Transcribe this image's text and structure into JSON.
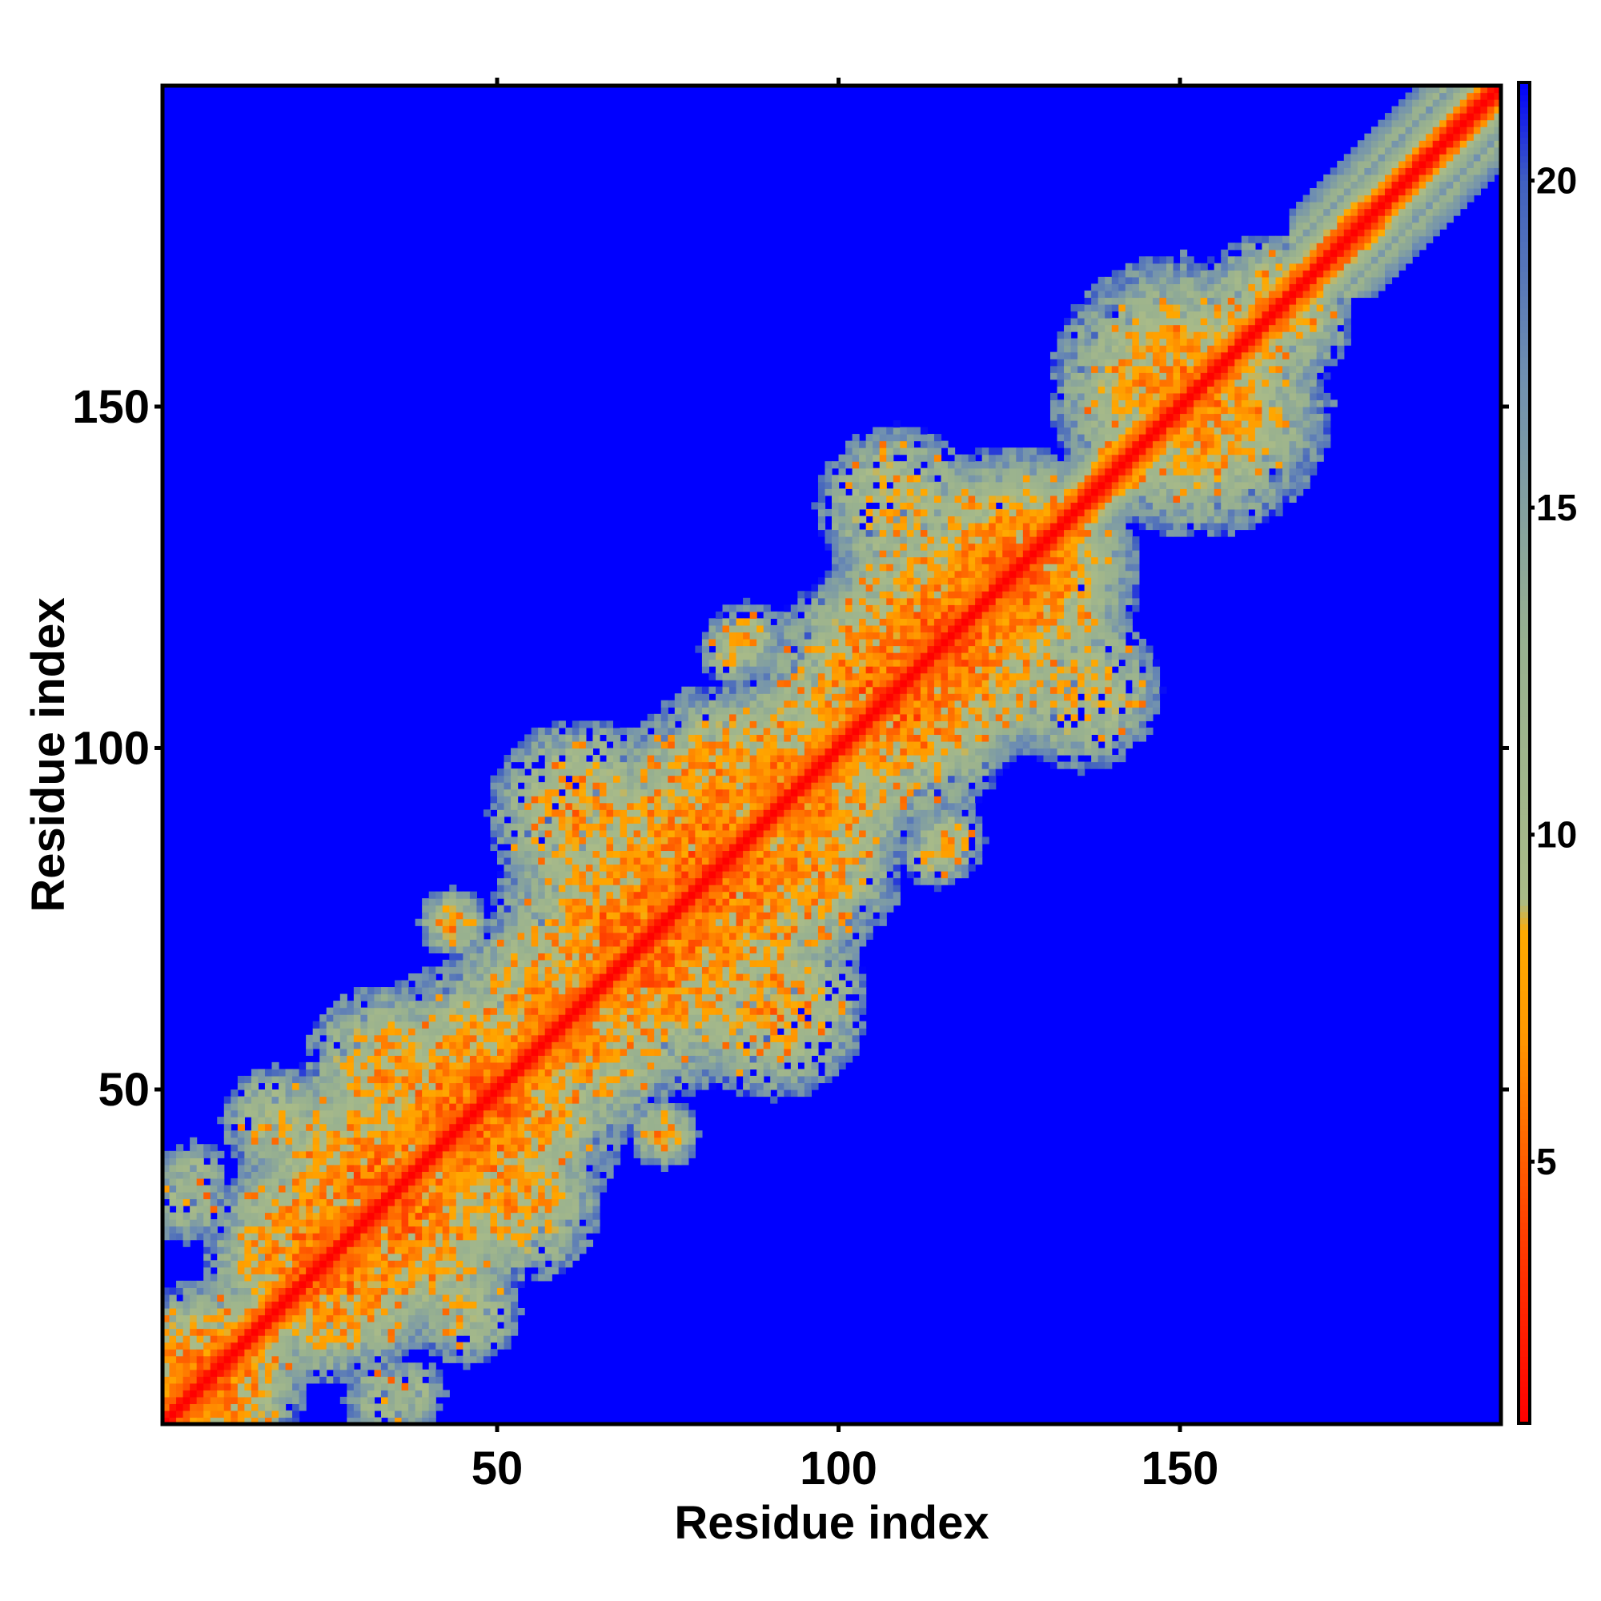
{
  "chart_data": {
    "type": "heatmap",
    "title": "",
    "xlabel": "Residue index",
    "ylabel": "Residue index",
    "xlim": [
      1,
      196
    ],
    "ylim": [
      1,
      196
    ],
    "x_ticks": [
      "50",
      "100",
      "150"
    ],
    "y_ticks": [
      "50",
      "100",
      "150"
    ],
    "colorbar": {
      "range": [
        1,
        21.5
      ],
      "ticks": [
        "5",
        "10",
        "15",
        "20"
      ],
      "stops": [
        {
          "value": 1,
          "color": "#ff0000"
        },
        {
          "value": 4,
          "color": "#ff4000"
        },
        {
          "value": 7,
          "color": "#ff9900"
        },
        {
          "value": 8.5,
          "color": "#ffaa00"
        },
        {
          "value": 9,
          "color": "#a9bb88"
        },
        {
          "value": 13,
          "color": "#97b090"
        },
        {
          "value": 17,
          "color": "#7090b0"
        },
        {
          "value": 20,
          "color": "#4060c0"
        },
        {
          "value": 21.5,
          "color": "#0000ff"
        }
      ]
    },
    "background_value": 21.5,
    "description_values": {
      "diagonal_band": [
        {
          "offset": 0,
          "value": 1
        },
        {
          "offset": 1,
          "value": 2
        },
        {
          "offset": 2,
          "value": 5
        },
        {
          "offset": 3,
          "value": 6
        },
        {
          "offset": 4,
          "value": 9
        },
        {
          "offset": 5,
          "value": 11
        },
        {
          "offset": 6,
          "value": 13
        },
        {
          "offset": 7,
          "value": 15
        }
      ],
      "contact_blobs": [
        {
          "x": 8,
          "y": 8,
          "r": 14,
          "core": 6
        },
        {
          "x": 25,
          "y": 22,
          "r": 16,
          "core": 6
        },
        {
          "x": 33,
          "y": 34,
          "r": 22,
          "core": 6
        },
        {
          "x": 45,
          "y": 48,
          "r": 20,
          "core": 6
        },
        {
          "x": 58,
          "y": 60,
          "r": 18,
          "core": 7
        },
        {
          "x": 70,
          "y": 72,
          "r": 22,
          "core": 6
        },
        {
          "x": 80,
          "y": 83,
          "r": 20,
          "core": 6
        },
        {
          "x": 92,
          "y": 94,
          "r": 18,
          "core": 7
        },
        {
          "x": 105,
          "y": 108,
          "r": 18,
          "core": 6
        },
        {
          "x": 115,
          "y": 115,
          "r": 20,
          "core": 6
        },
        {
          "x": 125,
          "y": 126,
          "r": 18,
          "core": 6
        },
        {
          "x": 150,
          "y": 152,
          "r": 20,
          "core": 7
        },
        {
          "x": 165,
          "y": 163,
          "r": 10,
          "core": 8
        },
        {
          "x": 84,
          "y": 114,
          "r": 5,
          "core": 9
        },
        {
          "x": 43,
          "y": 74,
          "r": 5,
          "core": 9
        },
        {
          "x": 74,
          "y": 43,
          "r": 5,
          "core": 9
        },
        {
          "x": 116,
          "y": 86,
          "r": 5,
          "core": 8
        },
        {
          "x": 5,
          "y": 37,
          "r": 5,
          "core": 11
        },
        {
          "x": 33,
          "y": 4,
          "r": 6,
          "core": 11
        },
        {
          "x": 95,
          "y": 82,
          "r": 14,
          "core": 7
        },
        {
          "x": 90,
          "y": 62,
          "r": 14,
          "core": 7
        },
        {
          "x": 135,
          "y": 108,
          "r": 12,
          "core": 9
        },
        {
          "x": 53,
          "y": 33,
          "r": 12,
          "core": 8
        },
        {
          "x": 45,
          "y": 17,
          "r": 8,
          "core": 10
        }
      ]
    }
  }
}
